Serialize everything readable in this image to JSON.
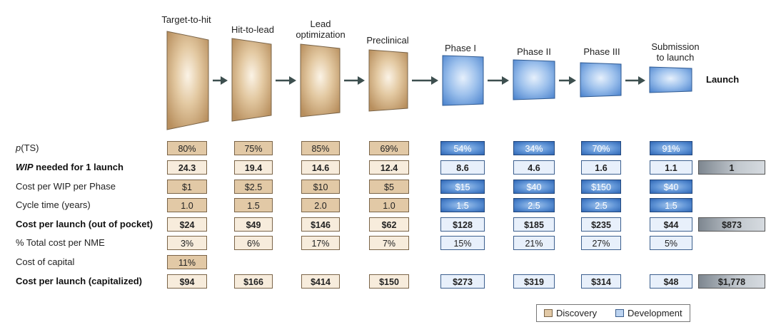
{
  "stages": [
    {
      "label": [
        "Target-to-hit"
      ],
      "group": "discovery"
    },
    {
      "label": [
        "Hit-to-lead"
      ],
      "group": "discovery"
    },
    {
      "label": [
        "Lead",
        "optimization"
      ],
      "group": "discovery"
    },
    {
      "label": [
        "Preclinical"
      ],
      "group": "discovery"
    },
    {
      "label": [
        "Phase I"
      ],
      "group": "development"
    },
    {
      "label": [
        "Phase II"
      ],
      "group": "development"
    },
    {
      "label": [
        "Phase III"
      ],
      "group": "development"
    },
    {
      "label": [
        "Submission",
        "to launch"
      ],
      "group": "development"
    }
  ],
  "launch_label": "Launch",
  "rows": [
    {
      "label_italic": "p",
      "label_rest": "(TS)",
      "style": "normal",
      "cells": [
        "80%",
        "75%",
        "85%",
        "69%",
        "54%",
        "34%",
        "70%",
        "91%"
      ],
      "total": ""
    },
    {
      "label_italic": "WIP",
      "label_rest": " needed for 1 launch",
      "style": "bold-italic",
      "cells": [
        "24.3",
        "19.4",
        "14.6",
        "12.4",
        "8.6",
        "4.6",
        "1.6",
        "1.1"
      ],
      "total": "1"
    },
    {
      "label_italic": "",
      "label_rest": "Cost per WIP per Phase",
      "style": "normal",
      "cells": [
        "$1",
        "$2.5",
        "$10",
        "$5",
        "$15",
        "$40",
        "$150",
        "$40"
      ],
      "total": ""
    },
    {
      "label_italic": "",
      "label_rest": "Cycle time (years)",
      "style": "normal",
      "cells": [
        "1.0",
        "1.5",
        "2.0",
        "1.0",
        "1.5",
        "2.5",
        "2.5",
        "1.5"
      ],
      "total": ""
    },
    {
      "label_italic": "",
      "label_rest": "Cost per launch (out of pocket)",
      "style": "bold",
      "cells": [
        "$24",
        "$49",
        "$146",
        "$62",
        "$128",
        "$185",
        "$235",
        "$44"
      ],
      "total": "$873"
    },
    {
      "label_italic": "",
      "label_rest": "% Total cost per NME",
      "style": "normal",
      "cells": [
        "3%",
        "6%",
        "17%",
        "7%",
        "15%",
        "21%",
        "27%",
        "5%"
      ],
      "total": ""
    },
    {
      "label_italic": "",
      "label_rest": "Cost of capital",
      "style": "normal",
      "cells": [
        "11%",
        "",
        "",
        "",
        "",
        "",
        "",
        ""
      ],
      "total": ""
    },
    {
      "label_italic": "",
      "label_rest": "Cost per launch (capitalized)",
      "style": "bold",
      "cells": [
        "$94",
        "$166",
        "$414",
        "$150",
        "$273",
        "$319",
        "$314",
        "$48"
      ],
      "total": "$1,778"
    }
  ],
  "legend": {
    "discovery": "Discovery",
    "development": "Development"
  },
  "colors": {
    "discovery_fill": "#c9a57a",
    "development_fill": "#6e9fdc",
    "arrow": "#3d4f4f"
  }
}
